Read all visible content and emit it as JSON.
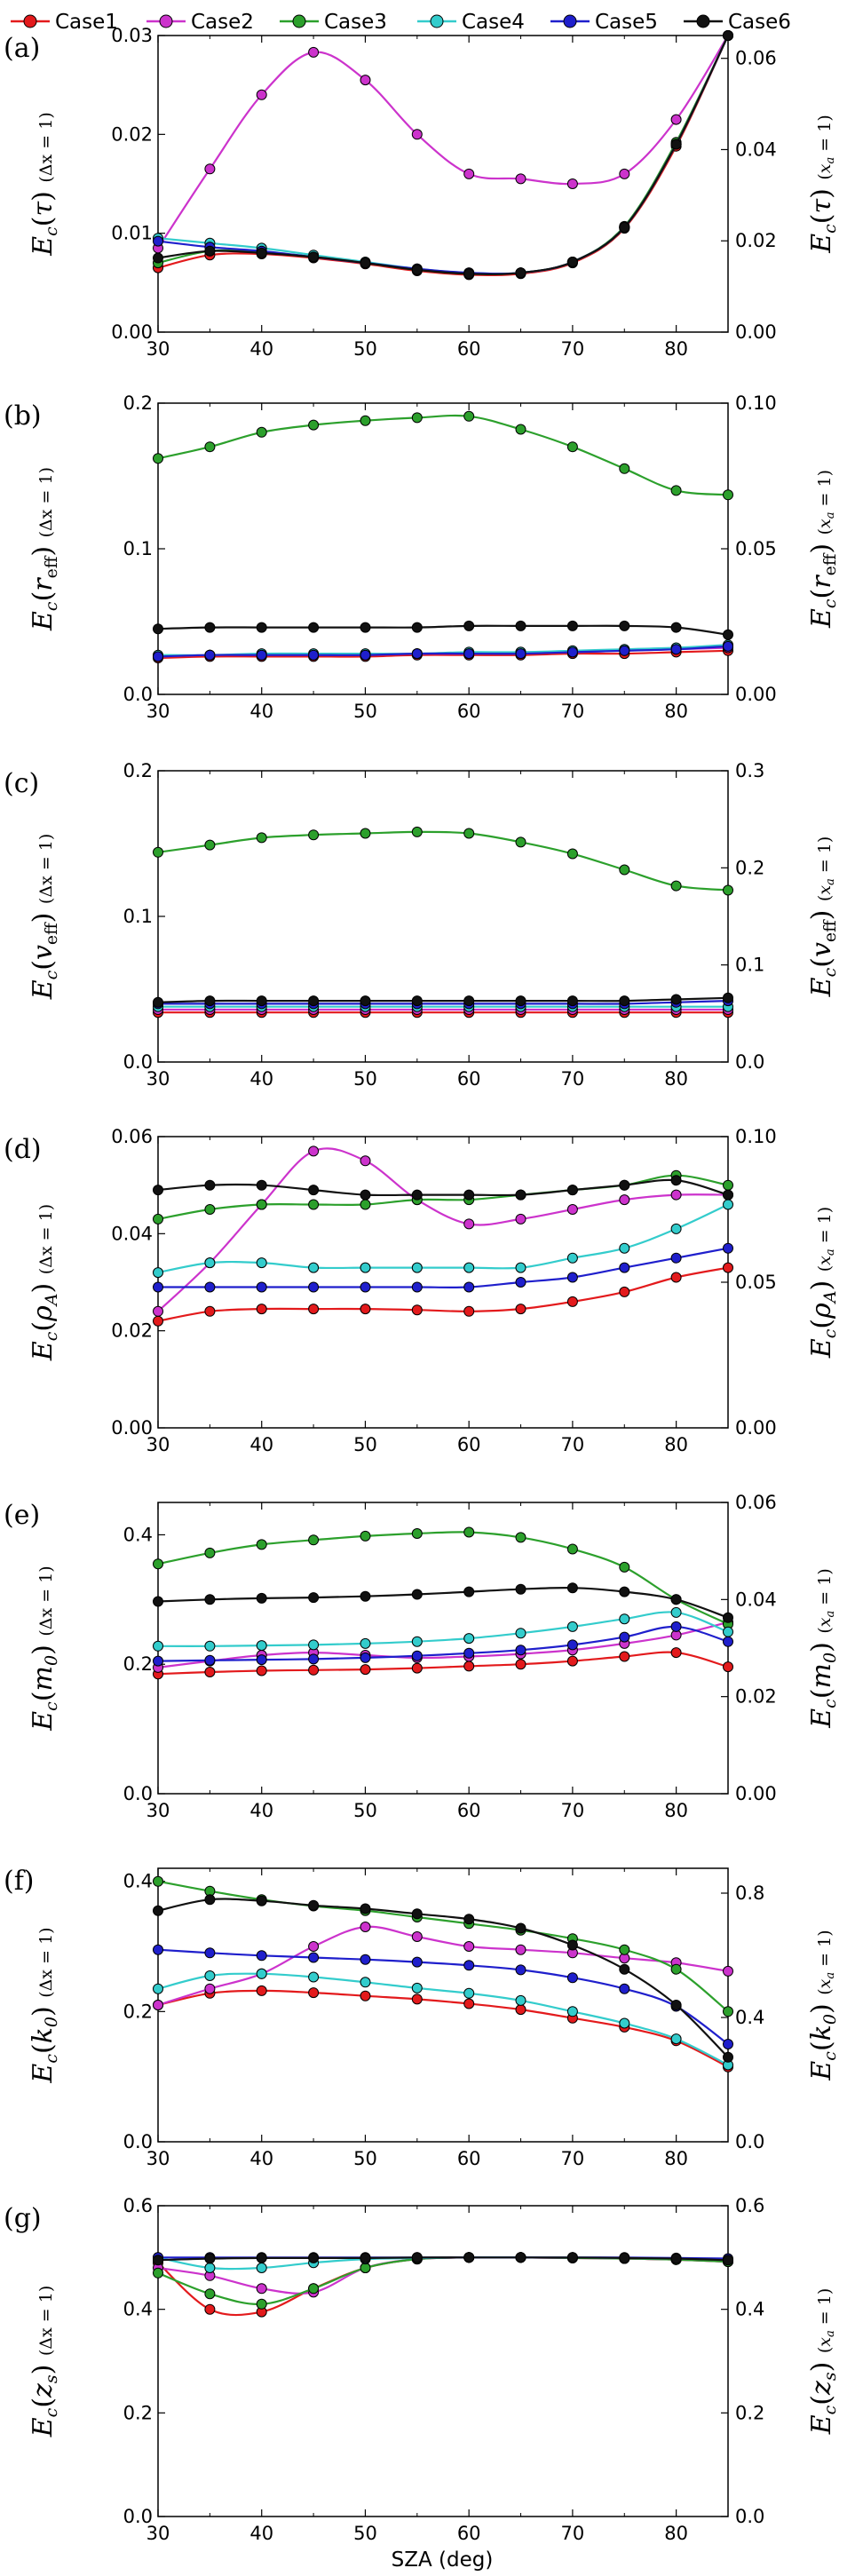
{
  "legend": [
    {
      "name": "Case1",
      "color": "#e31a1c"
    },
    {
      "name": "Case2",
      "color": "#cc33cc"
    },
    {
      "name": "Case3",
      "color": "#2ca02c"
    },
    {
      "name": "Case4",
      "color": "#33cccc"
    },
    {
      "name": "Case5",
      "color": "#1f1fcc"
    },
    {
      "name": "Case6",
      "color": "#111111"
    }
  ],
  "xlabel": "SZA (deg)",
  "chart_data": [
    {
      "type": "line",
      "panel": "(a)",
      "ylabel_left": "E_c(τ) (Δx = 1)",
      "ylabel_right": "E_c(τ) (x_a = 1)",
      "xlim": [
        30,
        85
      ],
      "xticks": [
        30,
        40,
        50,
        60,
        70,
        80
      ],
      "ylim_left": [
        0,
        0.03
      ],
      "yticks_left": [
        "0.00",
        "0.01",
        "0.02",
        "0.03"
      ],
      "ylim_right": [
        0,
        0.065
      ],
      "yticks_right": [
        "0.00",
        "0.02",
        "0.04",
        "0.06"
      ],
      "x": [
        30,
        35,
        40,
        45,
        50,
        55,
        60,
        65,
        70,
        75,
        80,
        85
      ],
      "series": [
        {
          "name": "Case1",
          "values": [
            0.0065,
            0.0078,
            0.0079,
            0.0075,
            0.0069,
            0.0062,
            0.0058,
            0.0059,
            0.007,
            0.0105,
            0.0188,
            0.031
          ]
        },
        {
          "name": "Case2",
          "values": [
            0.0085,
            0.0165,
            0.024,
            0.0283,
            0.0255,
            0.02,
            0.016,
            0.0155,
            0.015,
            0.016,
            0.0215,
            0.031
          ]
        },
        {
          "name": "Case3",
          "values": [
            0.007,
            0.0082,
            0.0081,
            0.0076,
            0.007,
            0.0063,
            0.0059,
            0.006,
            0.0071,
            0.0107,
            0.0192,
            0.031
          ]
        },
        {
          "name": "Case4",
          "values": [
            0.0095,
            0.009,
            0.0085,
            0.0078,
            0.0071,
            0.0064,
            0.006,
            0.006,
            0.0071,
            0.0106,
            0.019,
            0.031
          ]
        },
        {
          "name": "Case5",
          "values": [
            0.0092,
            0.0086,
            0.0082,
            0.0076,
            0.007,
            0.0064,
            0.006,
            0.006,
            0.0071,
            0.0106,
            0.019,
            0.031
          ]
        },
        {
          "name": "Case6",
          "values": [
            0.0075,
            0.0082,
            0.008,
            0.0076,
            0.007,
            0.0063,
            0.0059,
            0.006,
            0.0071,
            0.0106,
            0.019,
            0.031
          ]
        }
      ]
    },
    {
      "type": "line",
      "panel": "(b)",
      "ylabel_left": "E_c(r_eff) (Δx = 1)",
      "ylabel_right": "E_c(r_eff) (x_a = 1)",
      "xlim": [
        30,
        85
      ],
      "xticks": [
        30,
        40,
        50,
        60,
        70,
        80
      ],
      "ylim_left": [
        0,
        0.2
      ],
      "yticks_left": [
        "0.0",
        "0.1",
        "0.2"
      ],
      "ylim_right": [
        0,
        0.1
      ],
      "yticks_right": [
        "0.00",
        "0.05",
        "0.10"
      ],
      "x": [
        30,
        35,
        40,
        45,
        50,
        55,
        60,
        65,
        70,
        75,
        80,
        85
      ],
      "series": [
        {
          "name": "Case1",
          "values": [
            0.025,
            0.026,
            0.026,
            0.026,
            0.026,
            0.027,
            0.027,
            0.027,
            0.028,
            0.028,
            0.029,
            0.03
          ]
        },
        {
          "name": "Case2",
          "values": [
            0.026,
            0.027,
            0.027,
            0.027,
            0.027,
            0.028,
            0.028,
            0.029,
            0.029,
            0.03,
            0.031,
            0.032
          ]
        },
        {
          "name": "Case3",
          "values": [
            0.162,
            0.17,
            0.18,
            0.185,
            0.188,
            0.19,
            0.191,
            0.182,
            0.17,
            0.155,
            0.14,
            0.137
          ]
        },
        {
          "name": "Case4",
          "values": [
            0.027,
            0.027,
            0.028,
            0.028,
            0.028,
            0.028,
            0.029,
            0.029,
            0.03,
            0.031,
            0.032,
            0.034
          ]
        },
        {
          "name": "Case5",
          "values": [
            0.026,
            0.027,
            0.027,
            0.027,
            0.027,
            0.028,
            0.028,
            0.028,
            0.029,
            0.03,
            0.031,
            0.033
          ]
        },
        {
          "name": "Case6",
          "values": [
            0.045,
            0.046,
            0.046,
            0.046,
            0.046,
            0.046,
            0.047,
            0.047,
            0.047,
            0.047,
            0.046,
            0.041
          ]
        }
      ]
    },
    {
      "type": "line",
      "panel": "(c)",
      "ylabel_left": "E_c(v_eff) (Δx = 1)",
      "ylabel_right": "E_c(v_eff) (x_a = 1)",
      "xlim": [
        30,
        85
      ],
      "xticks": [
        30,
        40,
        50,
        60,
        70,
        80
      ],
      "ylim_left": [
        0,
        0.2
      ],
      "yticks_left": [
        "0.0",
        "0.1",
        "0.2"
      ],
      "ylim_right": [
        0,
        0.3
      ],
      "yticks_right": [
        "0.0",
        "0.1",
        "0.2",
        "0.3"
      ],
      "x": [
        30,
        35,
        40,
        45,
        50,
        55,
        60,
        65,
        70,
        75,
        80,
        85
      ],
      "series": [
        {
          "name": "Case1",
          "values": [
            0.034,
            0.034,
            0.034,
            0.034,
            0.034,
            0.034,
            0.034,
            0.034,
            0.034,
            0.034,
            0.034,
            0.034
          ]
        },
        {
          "name": "Case2",
          "values": [
            0.036,
            0.036,
            0.036,
            0.036,
            0.036,
            0.036,
            0.036,
            0.036,
            0.036,
            0.036,
            0.036,
            0.036
          ]
        },
        {
          "name": "Case3",
          "values": [
            0.144,
            0.149,
            0.154,
            0.156,
            0.157,
            0.158,
            0.157,
            0.151,
            0.143,
            0.132,
            0.121,
            0.118
          ]
        },
        {
          "name": "Case4",
          "values": [
            0.038,
            0.038,
            0.038,
            0.038,
            0.038,
            0.038,
            0.038,
            0.038,
            0.038,
            0.038,
            0.038,
            0.038
          ]
        },
        {
          "name": "Case5",
          "values": [
            0.04,
            0.04,
            0.04,
            0.04,
            0.04,
            0.04,
            0.04,
            0.04,
            0.04,
            0.04,
            0.041,
            0.042
          ]
        },
        {
          "name": "Case6",
          "values": [
            0.041,
            0.042,
            0.042,
            0.042,
            0.042,
            0.042,
            0.042,
            0.042,
            0.042,
            0.042,
            0.043,
            0.044
          ]
        }
      ]
    },
    {
      "type": "line",
      "panel": "(d)",
      "ylabel_left": "E_c(ρ_A) (Δx = 1)",
      "ylabel_right": "E_c(ρ_A) (x_a = 1)",
      "xlim": [
        30,
        85
      ],
      "xticks": [
        30,
        40,
        50,
        60,
        70,
        80
      ],
      "ylim_left": [
        0,
        0.06
      ],
      "yticks_left": [
        "0.00",
        "0.02",
        "0.04",
        "0.06"
      ],
      "ylim_right": [
        0,
        0.1
      ],
      "yticks_right": [
        "0.00",
        "0.05",
        "0.10"
      ],
      "x": [
        30,
        35,
        40,
        45,
        50,
        55,
        60,
        65,
        70,
        75,
        80,
        85
      ],
      "series": [
        {
          "name": "Case1",
          "values": [
            0.022,
            0.024,
            0.0245,
            0.0245,
            0.0245,
            0.0243,
            0.024,
            0.0245,
            0.026,
            0.028,
            0.031,
            0.033
          ]
        },
        {
          "name": "Case2",
          "values": [
            0.024,
            0.034,
            0.046,
            0.057,
            0.055,
            0.047,
            0.042,
            0.043,
            0.045,
            0.047,
            0.048,
            0.048
          ]
        },
        {
          "name": "Case3",
          "values": [
            0.043,
            0.045,
            0.046,
            0.046,
            0.046,
            0.047,
            0.047,
            0.048,
            0.049,
            0.05,
            0.052,
            0.05
          ]
        },
        {
          "name": "Case4",
          "values": [
            0.032,
            0.034,
            0.034,
            0.033,
            0.033,
            0.033,
            0.033,
            0.033,
            0.035,
            0.037,
            0.041,
            0.046
          ]
        },
        {
          "name": "Case5",
          "values": [
            0.029,
            0.029,
            0.029,
            0.029,
            0.029,
            0.029,
            0.029,
            0.03,
            0.031,
            0.033,
            0.035,
            0.037
          ]
        },
        {
          "name": "Case6",
          "values": [
            0.049,
            0.05,
            0.05,
            0.049,
            0.048,
            0.048,
            0.048,
            0.048,
            0.049,
            0.05,
            0.051,
            0.048
          ]
        }
      ]
    },
    {
      "type": "line",
      "panel": "(e)",
      "ylabel_left": "E_c(m_0) (Δx = 1)",
      "ylabel_right": "E_c(m_0) (x_a = 1)",
      "xlim": [
        30,
        85
      ],
      "xticks": [
        30,
        40,
        50,
        60,
        70,
        80
      ],
      "ylim_left": [
        0,
        0.45
      ],
      "yticks_left": [
        "0.0",
        "0.2",
        "0.4"
      ],
      "ylim_right": [
        0,
        0.06
      ],
      "yticks_right": [
        "0.00",
        "0.02",
        "0.04",
        "0.06"
      ],
      "x": [
        30,
        35,
        40,
        45,
        50,
        55,
        60,
        65,
        70,
        75,
        80,
        85
      ],
      "series": [
        {
          "name": "Case1",
          "values": [
            0.185,
            0.188,
            0.19,
            0.191,
            0.192,
            0.194,
            0.197,
            0.2,
            0.205,
            0.212,
            0.218,
            0.196
          ]
        },
        {
          "name": "Case2",
          "values": [
            0.195,
            0.205,
            0.214,
            0.218,
            0.214,
            0.21,
            0.212,
            0.216,
            0.222,
            0.232,
            0.245,
            0.265
          ]
        },
        {
          "name": "Case3",
          "values": [
            0.355,
            0.372,
            0.385,
            0.392,
            0.398,
            0.402,
            0.404,
            0.396,
            0.378,
            0.35,
            0.3,
            0.262
          ]
        },
        {
          "name": "Case4",
          "values": [
            0.228,
            0.228,
            0.229,
            0.23,
            0.232,
            0.235,
            0.24,
            0.248,
            0.258,
            0.27,
            0.28,
            0.25
          ]
        },
        {
          "name": "Case5",
          "values": [
            0.205,
            0.206,
            0.207,
            0.208,
            0.21,
            0.213,
            0.217,
            0.222,
            0.23,
            0.242,
            0.258,
            0.235
          ]
        },
        {
          "name": "Case6",
          "values": [
            0.297,
            0.3,
            0.302,
            0.303,
            0.305,
            0.308,
            0.312,
            0.316,
            0.318,
            0.312,
            0.3,
            0.272
          ]
        }
      ]
    },
    {
      "type": "line",
      "panel": "(f)",
      "ylabel_left": "E_c(k_0) (Δx = 1)",
      "ylabel_right": "E_c(k_0) (x_a = 1)",
      "xlim": [
        30,
        85
      ],
      "xticks": [
        30,
        40,
        50,
        60,
        70,
        80
      ],
      "ylim_left": [
        0,
        0.42
      ],
      "yticks_left": [
        "0.0",
        "0.2",
        "0.4"
      ],
      "ylim_right": [
        0,
        0.88
      ],
      "yticks_right": [
        "0.0",
        "0.4",
        "0.8"
      ],
      "x": [
        30,
        35,
        40,
        45,
        50,
        55,
        60,
        65,
        70,
        75,
        80,
        85
      ],
      "series": [
        {
          "name": "Case1",
          "values": [
            0.21,
            0.228,
            0.232,
            0.229,
            0.224,
            0.219,
            0.212,
            0.203,
            0.19,
            0.176,
            0.155,
            0.115
          ]
        },
        {
          "name": "Case2",
          "values": [
            0.21,
            0.235,
            0.258,
            0.3,
            0.33,
            0.315,
            0.3,
            0.295,
            0.29,
            0.282,
            0.275,
            0.262
          ]
        },
        {
          "name": "Case3",
          "values": [
            0.4,
            0.385,
            0.372,
            0.362,
            0.355,
            0.345,
            0.335,
            0.325,
            0.312,
            0.295,
            0.265,
            0.2
          ]
        },
        {
          "name": "Case4",
          "values": [
            0.235,
            0.255,
            0.258,
            0.253,
            0.245,
            0.236,
            0.228,
            0.217,
            0.2,
            0.182,
            0.158,
            0.118
          ]
        },
        {
          "name": "Case5",
          "values": [
            0.295,
            0.29,
            0.286,
            0.283,
            0.28,
            0.276,
            0.271,
            0.264,
            0.252,
            0.235,
            0.208,
            0.15
          ]
        },
        {
          "name": "Case6",
          "values": [
            0.355,
            0.372,
            0.37,
            0.363,
            0.358,
            0.35,
            0.342,
            0.328,
            0.302,
            0.265,
            0.21,
            0.13
          ]
        }
      ]
    },
    {
      "type": "line",
      "panel": "(g)",
      "ylabel_left": "E_c(z_s) (Δx = 1)",
      "ylabel_right": "E_c(z_s) (x_a = 1)",
      "xlim": [
        30,
        85
      ],
      "xticks": [
        30,
        40,
        50,
        60,
        70,
        80
      ],
      "ylim_left": [
        0,
        0.6
      ],
      "yticks_left": [
        "0.0",
        "0.2",
        "0.4",
        "0.6"
      ],
      "ylim_right": [
        0,
        0.6
      ],
      "yticks_right": [
        "0.0",
        "0.2",
        "0.4",
        "0.6"
      ],
      "x": [
        30,
        35,
        40,
        45,
        50,
        55,
        60,
        65,
        70,
        75,
        80,
        85
      ],
      "series": [
        {
          "name": "Case1",
          "values": [
            0.49,
            0.4,
            0.395,
            0.44,
            0.48,
            0.497,
            0.5,
            0.5,
            0.499,
            0.498,
            0.496,
            0.492
          ]
        },
        {
          "name": "Case2",
          "values": [
            0.48,
            0.465,
            0.44,
            0.433,
            0.48,
            0.497,
            0.5,
            0.5,
            0.499,
            0.498,
            0.496,
            0.492
          ]
        },
        {
          "name": "Case3",
          "values": [
            0.47,
            0.43,
            0.41,
            0.44,
            0.48,
            0.497,
            0.5,
            0.5,
            0.499,
            0.498,
            0.496,
            0.492
          ]
        },
        {
          "name": "Case4",
          "values": [
            0.5,
            0.48,
            0.48,
            0.49,
            0.497,
            0.499,
            0.5,
            0.5,
            0.5,
            0.499,
            0.498,
            0.496
          ]
        },
        {
          "name": "Case5",
          "values": [
            0.5,
            0.5,
            0.5,
            0.5,
            0.5,
            0.5,
            0.5,
            0.5,
            0.5,
            0.5,
            0.499,
            0.498
          ]
        },
        {
          "name": "Case6",
          "values": [
            0.495,
            0.498,
            0.499,
            0.499,
            0.499,
            0.5,
            0.5,
            0.5,
            0.5,
            0.499,
            0.498,
            0.495
          ]
        }
      ]
    }
  ]
}
